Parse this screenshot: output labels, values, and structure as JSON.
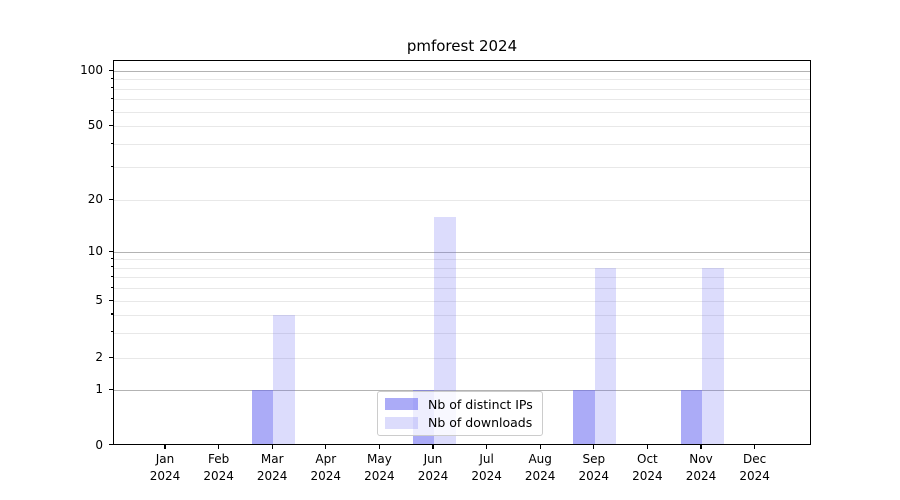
{
  "chart_data": {
    "type": "bar",
    "title": "pmforest 2024",
    "categories": [
      "Jan",
      "Feb",
      "Mar",
      "Apr",
      "May",
      "Jun",
      "Jul",
      "Aug",
      "Sep",
      "Oct",
      "Nov",
      "Dec"
    ],
    "x_tick_second_line": "2024",
    "series": [
      {
        "name": "Nb of distinct IPs",
        "base_color": "#6666f0",
        "alpha": 0.55,
        "effective_color": "#aaaaf8",
        "values": [
          0,
          0,
          1,
          0,
          0,
          1,
          0,
          0,
          1,
          0,
          1,
          0
        ]
      },
      {
        "name": "Nb of downloads",
        "base_color": "#6666f0",
        "alpha": 0.23,
        "effective_color": "#dcdcf9",
        "values": [
          0,
          0,
          4,
          0,
          0,
          16,
          0,
          0,
          8,
          0,
          8,
          0
        ]
      }
    ],
    "xlabel": "",
    "ylabel": "",
    "y_axis": {
      "scale": "symlog-like",
      "tick_values": [
        0,
        1,
        2,
        5,
        10,
        20,
        50,
        100
      ],
      "tick_labels": [
        "0",
        "1",
        "2",
        "5",
        "10",
        "20",
        "50",
        "100"
      ],
      "minor_tick_values": [
        3,
        4,
        6,
        7,
        8,
        9,
        30,
        40,
        60,
        70,
        80,
        90
      ],
      "ylim": [
        0,
        113
      ]
    },
    "grid": {
      "enabled": true,
      "major_values": [
        1,
        10,
        100
      ],
      "minor_values": [
        2,
        3,
        4,
        5,
        6,
        7,
        8,
        9,
        20,
        30,
        40,
        50,
        60,
        70,
        80,
        90
      ],
      "major_color": "#b3b3b3",
      "minor_color": "#e8e8e8"
    },
    "legend": {
      "position": "lower center",
      "entries": [
        "Nb of distinct IPs",
        "Nb of downloads"
      ]
    }
  }
}
